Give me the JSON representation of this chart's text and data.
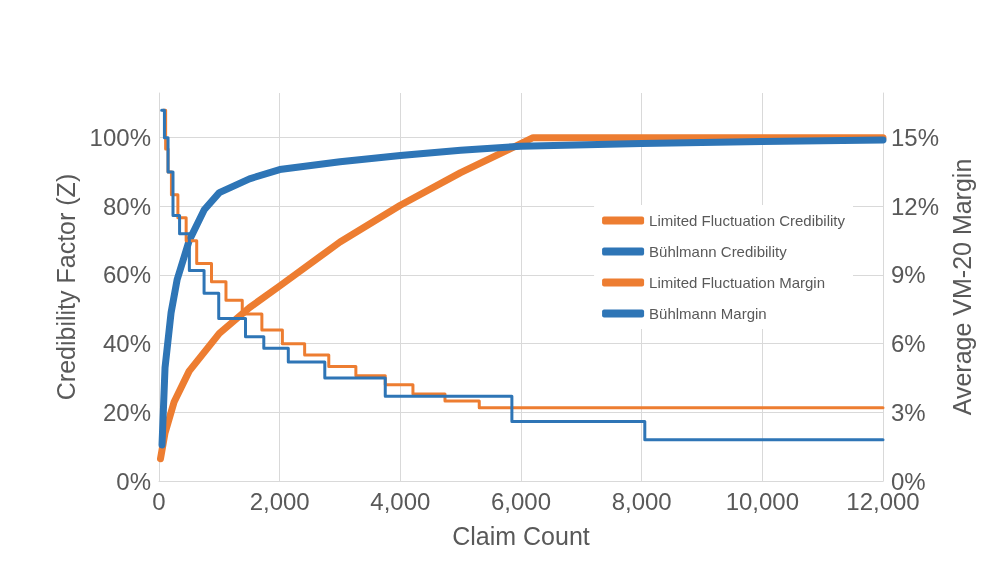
{
  "chart_data": {
    "type": "line",
    "xlabel": "Claim Count",
    "ylabel": "Credibility Factor (Z)",
    "y2label": "Average VM-20 Margin",
    "xlim": [
      0,
      12000
    ],
    "xticks": [
      0,
      {
        "value": 2000,
        "label": "2,000"
      },
      {
        "value": 4000,
        "label": "4,000"
      },
      {
        "value": 6000,
        "label": "6,000"
      },
      {
        "value": 8000,
        "label": "8,000"
      },
      {
        "value": 10000,
        "label": "10,000"
      },
      {
        "value": 12000,
        "label": "12,000"
      }
    ],
    "ylim": [
      0,
      113
    ],
    "yticks": [
      {
        "value": 0,
        "label": "0%"
      },
      {
        "value": 20,
        "label": "20%"
      },
      {
        "value": 40,
        "label": "40%"
      },
      {
        "value": 60,
        "label": "60%"
      },
      {
        "value": 80,
        "label": "80%"
      },
      {
        "value": 100,
        "label": "100%"
      }
    ],
    "y2lim": [
      0,
      16.95
    ],
    "y2ticks": [
      {
        "value": 0,
        "label": "0%"
      },
      {
        "value": 3,
        "label": "3%"
      },
      {
        "value": 6,
        "label": "6%"
      },
      {
        "value": 9,
        "label": "9%"
      },
      {
        "value": 12,
        "label": "12%"
      },
      {
        "value": 15,
        "label": "15%"
      }
    ],
    "grid": true,
    "legend": "right",
    "marker": "none",
    "series": [
      {
        "name": "Limited Fluctuation Credibility",
        "color": "#ed7d31",
        "x": [
          25,
          100,
          250,
          500,
          1000,
          1500,
          2000,
          3000,
          4000,
          5000,
          6200,
          12000
        ],
        "values": [
          6.5,
          14,
          23,
          32,
          43,
          50.5,
          56.8,
          69.6,
          80.3,
          89.8,
          100,
          100
        ]
      },
      {
        "name": "Bühlmann Credibility",
        "color": "#2e75b6",
        "x": [
          50,
          100,
          200,
          300,
          500,
          750,
          1000,
          1500,
          2000,
          3000,
          4000,
          5000,
          6000,
          8000,
          10000,
          12000
        ],
        "values": [
          10.5,
          33,
          49,
          58.6,
          70,
          79,
          84,
          88,
          90.7,
          93,
          94.8,
          96.3,
          97.5,
          98.3,
          98.9,
          99.3
        ]
      },
      {
        "name": "Limited Fluctuation Margin",
        "color": "#ed7d31",
        "type": "step",
        "axis": "y2",
        "x": [
          70,
          110,
          150,
          206,
          313,
          450,
          625,
          870,
          1110,
          1380,
          1705,
          2045,
          2414,
          2814,
          3263,
          3750,
          4209,
          4740,
          5308,
          12000
        ],
        "values": [
          16.2,
          14.5,
          13.5,
          12.5,
          11.5,
          10.5,
          9.5,
          8.7,
          7.9,
          7.3,
          6.6,
          6.0,
          5.5,
          5.0,
          4.6,
          4.2,
          3.8,
          3.5,
          3.2,
          3.2
        ]
      },
      {
        "name": "Bühlmann Margin",
        "color": "#2e75b6",
        "type": "step",
        "axis": "y2",
        "x": [
          44,
          90,
          150,
          232,
          341,
          503,
          747,
          990,
          1434,
          1737,
          2143,
          2748,
          3750,
          5849,
          8052,
          12000
        ],
        "values": [
          16.2,
          15.0,
          13.5,
          11.6,
          10.8,
          9.2,
          8.2,
          7.1,
          6.3,
          5.8,
          5.2,
          4.5,
          3.7,
          2.6,
          1.8,
          1.8
        ]
      }
    ]
  }
}
